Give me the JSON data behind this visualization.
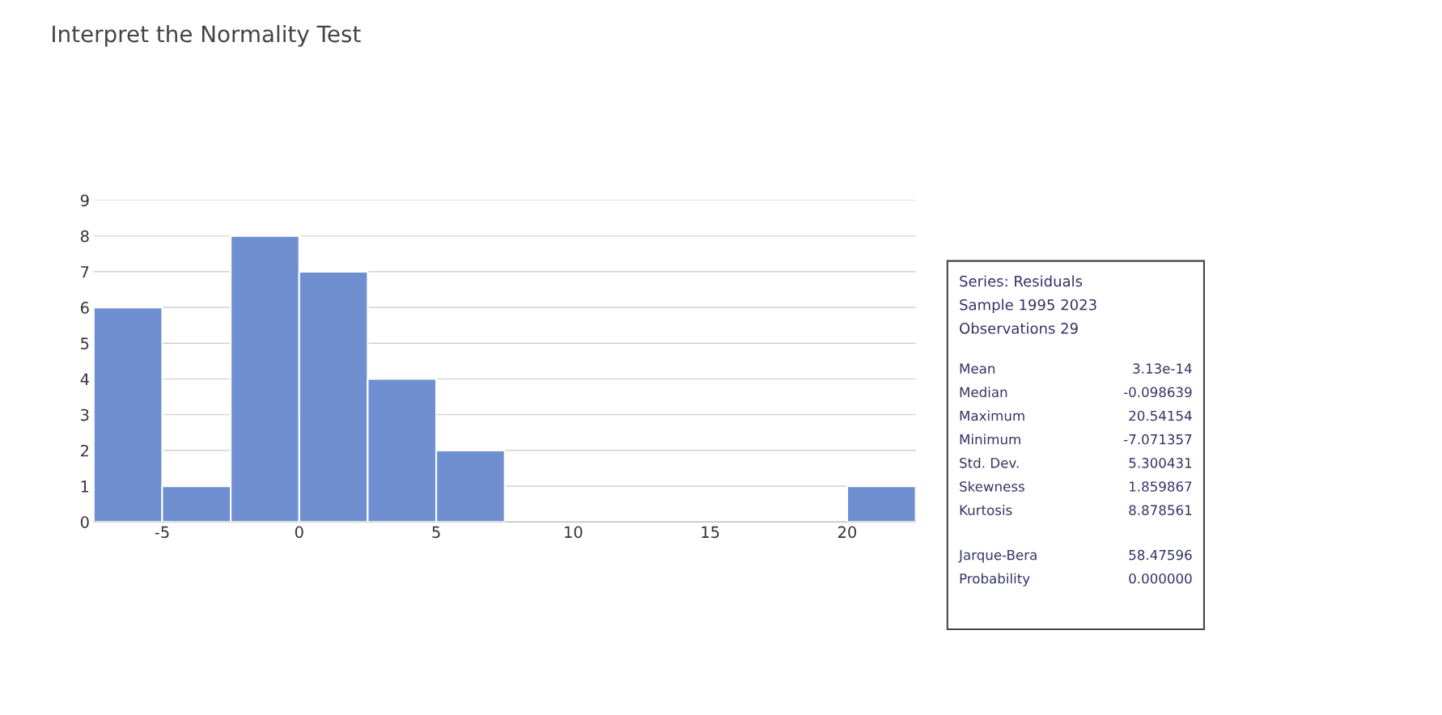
{
  "chart_data": {
    "type": "histogram",
    "title": "Interpret the Normality Test",
    "bins": [
      -7.5,
      -5,
      -2.5,
      0,
      2.5,
      5,
      7.5,
      10,
      12.5,
      15,
      17.5,
      20,
      22.5
    ],
    "values": [
      6,
      1,
      8,
      7,
      4,
      2,
      0,
      0,
      0,
      0,
      0,
      1
    ],
    "color": "#6f8fd0",
    "xlim": [
      -7.5,
      22.5
    ],
    "xticks": [
      -5,
      0,
      5,
      10,
      15,
      20
    ],
    "ylim": [
      0,
      9
    ],
    "yticks": [
      0,
      1,
      2,
      3,
      4,
      5,
      6,
      7,
      8,
      9
    ],
    "grid": "y",
    "legend": false,
    "annotations": [
      "Series: Residuals",
      "Sample 1995 2023",
      "Observations 29",
      "Mean",
      "3.13e-14",
      "Median",
      "-0.098639",
      "Maximum",
      "20.54154",
      "Minimum",
      "-7.071357",
      "Std. Dev.",
      "5.300431",
      "Skewness",
      "1.859867",
      "Kurtosis",
      "8.878561",
      "Jarque-Bera",
      "58.47596",
      "Probability",
      "0.000000"
    ]
  }
}
